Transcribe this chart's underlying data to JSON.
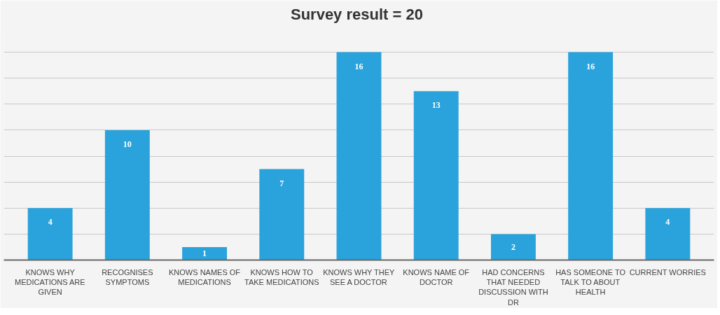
{
  "chart_data": {
    "type": "bar",
    "title": "Survey result  = 20",
    "categories": [
      "KNOWS WHY MEDICATIONS ARE GIVEN",
      "RECOGNISES SYMPTOMS",
      "KNOWS NAMES OF MEDICATIONS",
      "KNOWS HOW TO TAKE MEDICATIONS",
      "KNOWS WHY THEY SEE A DOCTOR",
      "KNOWS NAME OF DOCTOR",
      "HAD CONCERNS THAT NEEDED DISCUSSION WITH DR",
      "HAS SOMEONE TO TALK TO ABOUT HEALTH",
      "CURRENT WORRIES"
    ],
    "values": [
      4,
      10,
      1,
      7,
      16,
      13,
      2,
      16,
      4
    ],
    "color": "#2aa3dc",
    "ylim": [
      0,
      18
    ],
    "yticks": [
      {
        "value": 0,
        "label": null
      },
      {
        "value": 2,
        "label": null
      },
      {
        "value": 4,
        "label": null
      },
      {
        "value": 6,
        "label": null
      },
      {
        "value": 8,
        "label": null
      },
      {
        "value": 10,
        "label": null
      },
      {
        "value": 12,
        "label": null
      },
      {
        "value": 14,
        "label": null
      },
      {
        "value": 16,
        "label": null
      },
      {
        "value": 18,
        "label": null
      }
    ],
    "grid": "y",
    "tick_labels": "x",
    "data_labels": true
  }
}
